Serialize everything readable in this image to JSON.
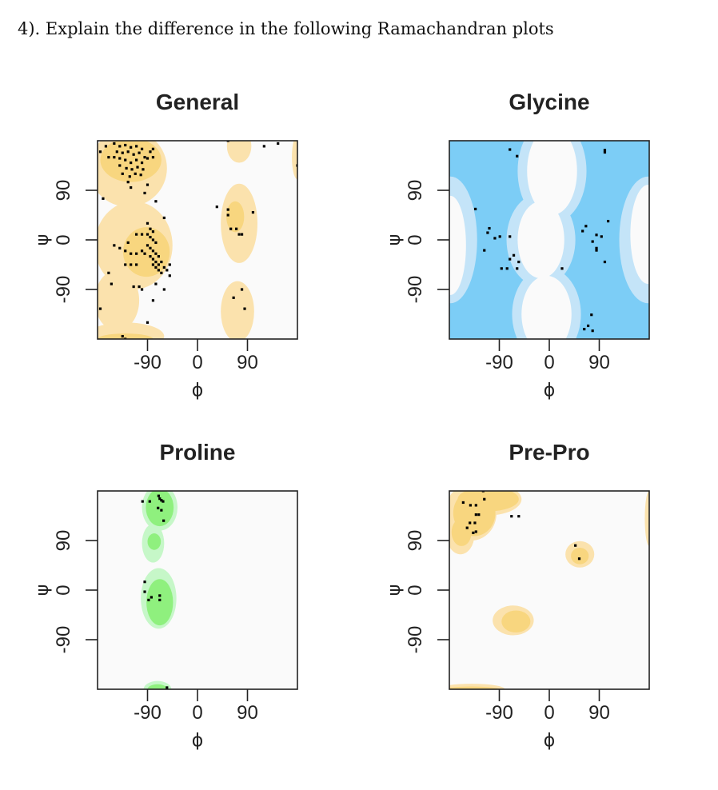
{
  "question": "4). Explain the difference in the following Ramachandran plots",
  "colors": {
    "background": "#fafafa",
    "yellow_light": "#fbe2ad",
    "yellow_dark": "#f8d67f",
    "blue_light": "#c4e4f8",
    "blue_dark": "#7ccdf6",
    "green_light": "#c6f7c8",
    "green_dark": "#8ff07e",
    "point": "#000000"
  },
  "chart_data": [
    {
      "type": "scatter",
      "title": "General",
      "xlabel": "ϕ",
      "ylabel": "ψ",
      "xlim": [
        -180,
        180
      ],
      "ylim": [
        -180,
        180
      ],
      "xticks": [
        "-90",
        "0",
        "90"
      ],
      "yticks": [
        "90",
        "0",
        "-90"
      ],
      "tick_values": [
        -90,
        0,
        90
      ],
      "palette": "yellow",
      "base": "white",
      "regions": [
        {
          "phi": -125,
          "psi": 130,
          "rphi": 70,
          "rpsi": 70,
          "level": "light"
        },
        {
          "phi": -115,
          "psi": -10,
          "rphi": 70,
          "rpsi": 80,
          "level": "light"
        },
        {
          "phi": -145,
          "psi": -110,
          "rphi": 40,
          "rpsi": 55,
          "level": "light"
        },
        {
          "phi": -130,
          "psi": -175,
          "rphi": 70,
          "rpsi": 25,
          "level": "light"
        },
        {
          "phi": 75,
          "psi": 30,
          "rphi": 33,
          "rpsi": 72,
          "level": "light"
        },
        {
          "phi": 72,
          "psi": -130,
          "rphi": 30,
          "rpsi": 55,
          "level": "light"
        },
        {
          "phi": 75,
          "psi": 170,
          "rphi": 22,
          "rpsi": 30,
          "level": "light"
        },
        {
          "phi": 180,
          "psi": 150,
          "rphi": 10,
          "rpsi": 40,
          "level": "light"
        },
        {
          "phi": -120,
          "psi": 145,
          "rphi": 55,
          "rpsi": 40,
          "level": "dark"
        },
        {
          "phi": -92,
          "psi": -22,
          "rphi": 42,
          "rpsi": 45,
          "level": "dark"
        },
        {
          "phi": 68,
          "psi": 42,
          "rphi": 16,
          "rpsi": 28,
          "level": "dark"
        },
        {
          "phi": -130,
          "psi": -180,
          "rphi": 50,
          "rpsi": 10,
          "level": "dark"
        }
      ],
      "points": [
        [
          -150,
          175
        ],
        [
          -140,
          170
        ],
        [
          -130,
          172
        ],
        [
          -120,
          168
        ],
        [
          -110,
          170
        ],
        [
          -100,
          165
        ],
        [
          -145,
          160
        ],
        [
          -135,
          158
        ],
        [
          -125,
          160
        ],
        [
          -115,
          155
        ],
        [
          -105,
          158
        ],
        [
          -95,
          150
        ],
        [
          -150,
          150
        ],
        [
          -140,
          148
        ],
        [
          -130,
          145
        ],
        [
          -120,
          140
        ],
        [
          -110,
          145
        ],
        [
          -100,
          140
        ],
        [
          -90,
          148
        ],
        [
          -85,
          160
        ],
        [
          -140,
          135
        ],
        [
          -128,
          130
        ],
        [
          -118,
          128
        ],
        [
          -108,
          132
        ],
        [
          -98,
          128
        ],
        [
          -135,
          120
        ],
        [
          -122,
          115
        ],
        [
          -112,
          120
        ],
        [
          -102,
          118
        ],
        [
          -125,
          105
        ],
        [
          -90,
          100
        ],
        [
          -175,
          160
        ],
        [
          -165,
          170
        ],
        [
          -160,
          150
        ],
        [
          -80,
          150
        ],
        [
          -80,
          165
        ],
        [
          -120,
          95
        ],
        [
          -95,
          85
        ],
        [
          -170,
          75
        ],
        [
          -75,
          70
        ],
        [
          -60,
          40
        ],
        [
          -90,
          30
        ],
        [
          -85,
          20
        ],
        [
          -80,
          15
        ],
        [
          -90,
          10
        ],
        [
          -85,
          5
        ],
        [
          -80,
          0
        ],
        [
          -75,
          -5
        ],
        [
          -90,
          -10
        ],
        [
          -85,
          -15
        ],
        [
          -80,
          -20
        ],
        [
          -75,
          -25
        ],
        [
          -70,
          -30
        ],
        [
          -85,
          -30
        ],
        [
          -80,
          -35
        ],
        [
          -75,
          -40
        ],
        [
          -70,
          -45
        ],
        [
          -65,
          -40
        ],
        [
          -60,
          -50
        ],
        [
          -80,
          -45
        ],
        [
          -75,
          -50
        ],
        [
          -70,
          -55
        ],
        [
          -65,
          -60
        ],
        [
          -55,
          -55
        ],
        [
          -50,
          -45
        ],
        [
          -95,
          -25
        ],
        [
          -100,
          -20
        ],
        [
          -110,
          -25
        ],
        [
          -120,
          -25
        ],
        [
          -130,
          -20
        ],
        [
          -140,
          -15
        ],
        [
          -110,
          10
        ],
        [
          -100,
          10
        ],
        [
          -125,
          -5
        ],
        [
          -150,
          -10
        ],
        [
          -130,
          -45
        ],
        [
          -120,
          -45
        ],
        [
          -110,
          -45
        ],
        [
          -160,
          -60
        ],
        [
          -155,
          -80
        ],
        [
          -115,
          -85
        ],
        [
          -105,
          -85
        ],
        [
          -100,
          -90
        ],
        [
          -75,
          -80
        ],
        [
          -80,
          -110
        ],
        [
          -50,
          -65
        ],
        [
          -175,
          -125
        ],
        [
          -90,
          -150
        ],
        [
          -135,
          -175
        ],
        [
          -130,
          -180
        ],
        [
          -60,
          -90
        ],
        [
          35,
          60
        ],
        [
          55,
          55
        ],
        [
          55,
          45
        ],
        [
          60,
          20
        ],
        [
          70,
          20
        ],
        [
          75,
          10
        ],
        [
          80,
          10
        ],
        [
          100,
          50
        ],
        [
          80,
          -90
        ],
        [
          65,
          -105
        ],
        [
          85,
          -125
        ],
        [
          55,
          180
        ],
        [
          120,
          170
        ],
        [
          145,
          175
        ],
        [
          180,
          135
        ]
      ]
    },
    {
      "type": "scatter",
      "title": "Glycine",
      "xlabel": "ϕ",
      "ylabel": "ψ",
      "xlim": [
        -180,
        180
      ],
      "ylim": [
        -180,
        180
      ],
      "xticks": [
        "-90",
        "0",
        "90"
      ],
      "yticks": [
        "90",
        "0",
        "-90"
      ],
      "tick_values": [
        -90,
        0,
        90
      ],
      "palette": "blue",
      "base": "dark",
      "regions": [
        {
          "phi": 5,
          "psi": 125,
          "rphi": 62,
          "rpsi": 95,
          "level": "light"
        },
        {
          "phi": -15,
          "psi": 0,
          "rphi": 62,
          "rpsi": 85,
          "level": "light"
        },
        {
          "phi": -5,
          "psi": -135,
          "rphi": 62,
          "rpsi": 85,
          "level": "light"
        },
        {
          "phi": -178,
          "psi": 0,
          "rphi": 48,
          "rpsi": 115,
          "level": "light"
        },
        {
          "phi": 178,
          "psi": 0,
          "rphi": 52,
          "rpsi": 115,
          "level": "light"
        },
        {
          "phi": 5,
          "psi": 125,
          "rphi": 45,
          "rpsi": 80,
          "level": "white"
        },
        {
          "phi": -15,
          "psi": 0,
          "rphi": 42,
          "rpsi": 70,
          "level": "white"
        },
        {
          "phi": -5,
          "psi": -135,
          "rphi": 45,
          "rpsi": 70,
          "level": "white"
        },
        {
          "phi": -178,
          "psi": -10,
          "rphi": 28,
          "rpsi": 90,
          "level": "white"
        },
        {
          "phi": 178,
          "psi": 10,
          "rphi": 32,
          "rpsi": 90,
          "level": "white"
        }
      ],
      "points": [
        [
          -71,
          164
        ],
        [
          -58,
          152
        ],
        [
          100,
          163
        ],
        [
          100,
          159
        ],
        [
          -133,
          56
        ],
        [
          -108,
          21
        ],
        [
          -111,
          13
        ],
        [
          -98,
          3
        ],
        [
          -89,
          6
        ],
        [
          -71,
          6
        ],
        [
          -117,
          -19
        ],
        [
          -64,
          -28
        ],
        [
          -71,
          -35
        ],
        [
          -55,
          -40
        ],
        [
          -86,
          -52
        ],
        [
          -76,
          -52
        ],
        [
          -58,
          -52
        ],
        [
          23,
          -52
        ],
        [
          66,
          25
        ],
        [
          60,
          16
        ],
        [
          85,
          9
        ],
        [
          94,
          6
        ],
        [
          78,
          -3
        ],
        [
          85,
          -15
        ],
        [
          85,
          -19
        ],
        [
          106,
          34
        ],
        [
          100,
          -40
        ],
        [
          76,
          -136
        ],
        [
          70,
          -156
        ],
        [
          63,
          -162
        ],
        [
          78,
          -165
        ]
      ]
    },
    {
      "type": "scatter",
      "title": "Proline",
      "xlabel": "ϕ",
      "ylabel": "ψ",
      "xlim": [
        -180,
        180
      ],
      "ylim": [
        -180,
        180
      ],
      "xticks": [
        "-90",
        "0",
        "90"
      ],
      "yticks": [
        "90",
        "0",
        "-90"
      ],
      "tick_values": [
        -90,
        0,
        90
      ],
      "palette": "green",
      "base": "white",
      "regions": [
        {
          "phi": -68,
          "psi": 150,
          "rphi": 32,
          "rpsi": 42,
          "level": "light"
        },
        {
          "phi": -80,
          "psi": 85,
          "rphi": 20,
          "rpsi": 35,
          "level": "light"
        },
        {
          "phi": -70,
          "psi": -15,
          "rphi": 32,
          "rpsi": 55,
          "level": "light"
        },
        {
          "phi": -72,
          "psi": -180,
          "rphi": 25,
          "rpsi": 15,
          "level": "light"
        },
        {
          "phi": -68,
          "psi": 150,
          "rphi": 25,
          "rpsi": 34,
          "level": "dark"
        },
        {
          "phi": -78,
          "psi": 88,
          "rphi": 12,
          "rpsi": 15,
          "level": "dark"
        },
        {
          "phi": -68,
          "psi": -22,
          "rphi": 24,
          "rpsi": 42,
          "level": "dark"
        },
        {
          "phi": -72,
          "psi": -180,
          "rphi": 18,
          "rpsi": 9,
          "level": "dark"
        }
      ],
      "points": [
        [
          -99,
          161
        ],
        [
          -86,
          161
        ],
        [
          -70,
          171
        ],
        [
          -65,
          163
        ],
        [
          -62,
          161
        ],
        [
          -68,
          166
        ],
        [
          -71,
          149
        ],
        [
          -65,
          145
        ],
        [
          -61,
          126
        ],
        [
          -95,
          15
        ],
        [
          -95,
          -3
        ],
        [
          -88,
          -18
        ],
        [
          -83,
          -13
        ],
        [
          -68,
          -10
        ],
        [
          -68,
          -18
        ],
        [
          -55,
          -177
        ]
      ]
    },
    {
      "type": "scatter",
      "title": "Pre-Pro",
      "xlabel": "ϕ",
      "ylabel": "ψ",
      "xlim": [
        -180,
        180
      ],
      "ylim": [
        -180,
        180
      ],
      "xticks": [
        "-90",
        "0",
        "90"
      ],
      "yticks": [
        "90",
        "0",
        "-90"
      ],
      "tick_values": [
        -90,
        0,
        90
      ],
      "palette": "yellow",
      "base": "white",
      "regions": [
        {
          "phi": -140,
          "psi": 140,
          "rphi": 45,
          "rpsi": 50,
          "level": "light"
        },
        {
          "phi": -115,
          "psi": 165,
          "rphi": 65,
          "rpsi": 30,
          "level": "light"
        },
        {
          "phi": -160,
          "psi": 100,
          "rphi": 25,
          "rpsi": 35,
          "level": "light"
        },
        {
          "phi": -65,
          "psi": -55,
          "rphi": 37,
          "rpsi": 27,
          "level": "light"
        },
        {
          "phi": 55,
          "psi": 65,
          "rphi": 26,
          "rpsi": 24,
          "level": "light"
        },
        {
          "phi": -140,
          "psi": -180,
          "rphi": 60,
          "rpsi": 10,
          "level": "light"
        },
        {
          "phi": 180,
          "psi": 130,
          "rphi": 8,
          "rpsi": 50,
          "level": "light"
        },
        {
          "phi": -135,
          "psi": 140,
          "rphi": 38,
          "rpsi": 42,
          "level": "dark"
        },
        {
          "phi": -110,
          "psi": 165,
          "rphi": 55,
          "rpsi": 22,
          "level": "dark"
        },
        {
          "phi": -158,
          "psi": 105,
          "rphi": 18,
          "rpsi": 25,
          "level": "dark"
        },
        {
          "phi": -60,
          "psi": -57,
          "rphi": 26,
          "rpsi": 20,
          "level": "dark"
        },
        {
          "phi": 55,
          "psi": 62,
          "rphi": 16,
          "rpsi": 15,
          "level": "dark"
        },
        {
          "phi": -140,
          "psi": -180,
          "rphi": 50,
          "rpsi": 5,
          "level": "dark"
        }
      ],
      "points": [
        [
          -155,
          159
        ],
        [
          -142,
          154
        ],
        [
          -132,
          154
        ],
        [
          -132,
          137
        ],
        [
          -127,
          137
        ],
        [
          -143,
          122
        ],
        [
          -134,
          122
        ],
        [
          -148,
          113
        ],
        [
          -137,
          104
        ],
        [
          -132,
          106
        ],
        [
          -119,
          180
        ],
        [
          -117,
          165
        ],
        [
          -68,
          134
        ],
        [
          -55,
          134
        ],
        [
          47,
          81
        ],
        [
          54,
          57
        ]
      ]
    }
  ]
}
